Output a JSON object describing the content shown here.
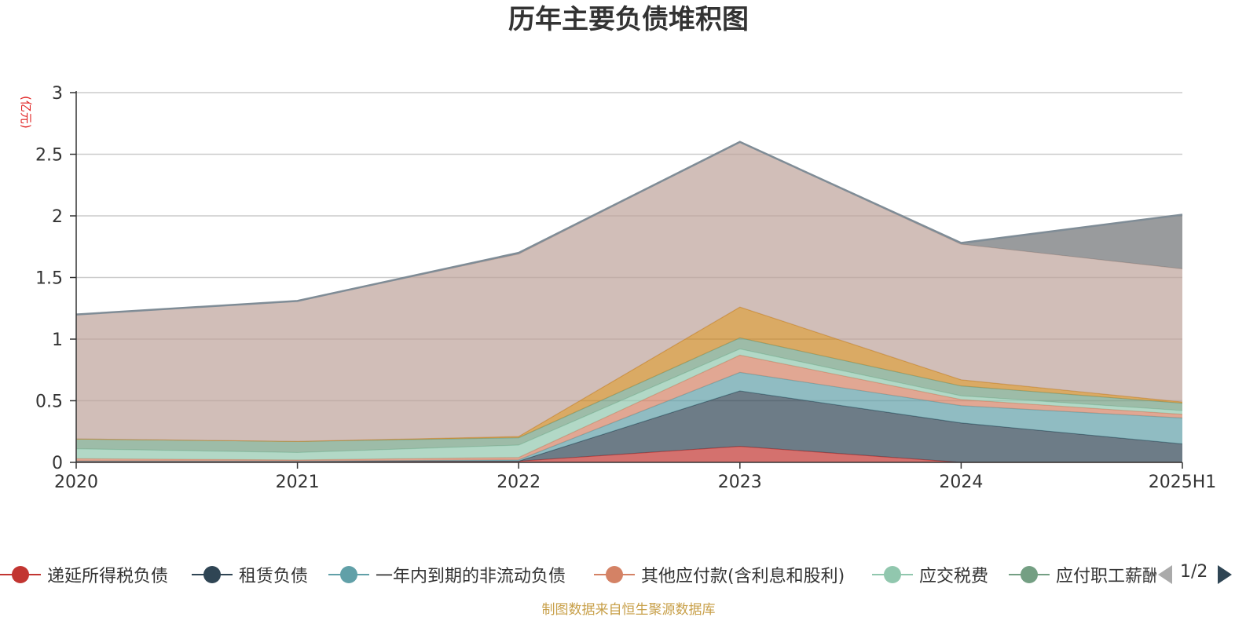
{
  "title": "历年主要负债堆积图",
  "unit": "(亿元)",
  "source": "制图数据来自恒生聚源数据库",
  "pager": "1/2",
  "chart_data": {
    "type": "area",
    "stacked": true,
    "title": "历年主要负债堆积图",
    "ylabel": "(亿元)",
    "ylim": [
      0,
      3
    ],
    "yticks": [
      "0",
      "0.5",
      "1",
      "1.5",
      "2",
      "2.5",
      "3"
    ],
    "grid": true,
    "legend_position": "bottom",
    "categories": [
      "2020",
      "2021",
      "2022",
      "2023",
      "2024",
      "2025H1"
    ],
    "series": [
      {
        "name": "递延所得税负债",
        "color": "#c23531",
        "values": [
          0.01,
          0.01,
          0.01,
          0.13,
          0.0,
          0.0
        ]
      },
      {
        "name": "租赁负债",
        "color": "#2f4554",
        "values": [
          0.0,
          0.0,
          0.0,
          0.45,
          0.32,
          0.15
        ]
      },
      {
        "name": "一年内到期的非流动负债",
        "color": "#61a0a8",
        "values": [
          0.0,
          0.0,
          0.01,
          0.15,
          0.14,
          0.21
        ]
      },
      {
        "name": "其他应付款(含利息和股利)",
        "color": "#d48265",
        "values": [
          0.02,
          0.01,
          0.02,
          0.14,
          0.05,
          0.03
        ]
      },
      {
        "name": "应交税费",
        "color": "#91c7ae",
        "values": [
          0.08,
          0.06,
          0.1,
          0.05,
          0.03,
          0.03
        ]
      },
      {
        "name": "应付职工薪酬",
        "color": "#749f83",
        "values": [
          0.08,
          0.09,
          0.06,
          0.09,
          0.08,
          0.06
        ]
      },
      {
        "name": "",
        "color": "#ca8622",
        "values": [
          0.0,
          0.0,
          0.01,
          0.25,
          0.05,
          0.01
        ]
      },
      {
        "name": "",
        "color": "#bda29a",
        "values": [
          1.01,
          1.14,
          1.48,
          1.34,
          1.1,
          1.08
        ]
      },
      {
        "name": "",
        "color": "#6e7074",
        "values": [
          0.0,
          0.0,
          0.01,
          0.0,
          0.01,
          0.44
        ]
      }
    ]
  }
}
